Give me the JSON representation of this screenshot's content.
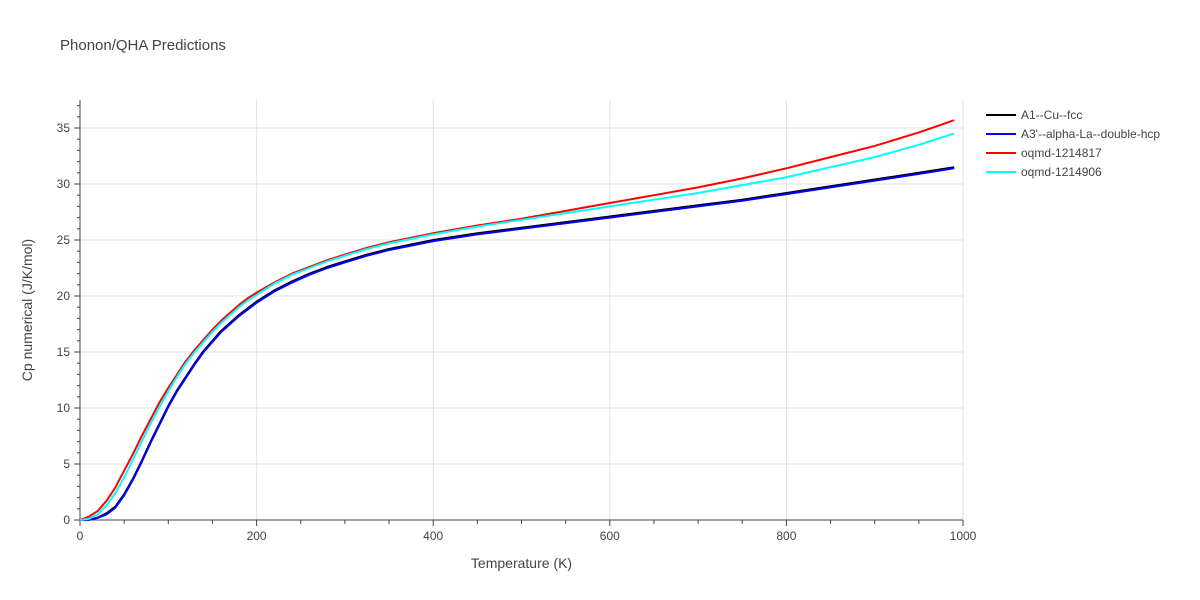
{
  "chart_data": {
    "type": "line",
    "title": "Phonon/QHA Predictions",
    "xlabel": "Temperature (K)",
    "ylabel": "Cp numerical (J/K/mol)",
    "xlim": [
      0,
      1000
    ],
    "ylim": [
      0,
      37.5
    ],
    "xticks": [
      0,
      200,
      400,
      600,
      800,
      1000
    ],
    "yticks": [
      0,
      5,
      10,
      15,
      20,
      25,
      30,
      35
    ],
    "grid": true,
    "legend_position": "top-right",
    "series": [
      {
        "name": "A1--Cu--fcc",
        "color": "#000000",
        "x": [
          0,
          10,
          20,
          30,
          40,
          50,
          60,
          70,
          80,
          90,
          100,
          110,
          120,
          130,
          140,
          150,
          160,
          170,
          180,
          190,
          200,
          220,
          240,
          260,
          280,
          300,
          325,
          350,
          375,
          400,
          450,
          500,
          550,
          600,
          650,
          700,
          750,
          800,
          850,
          900,
          950,
          990
        ],
        "y": [
          0,
          0.02,
          0.2,
          0.6,
          1.2,
          2.3,
          3.7,
          5.3,
          7.0,
          8.6,
          10.2,
          11.6,
          12.8,
          14.0,
          15.1,
          16.0,
          16.9,
          17.6,
          18.3,
          18.9,
          19.5,
          20.5,
          21.3,
          22.0,
          22.6,
          23.1,
          23.7,
          24.2,
          24.6,
          25.0,
          25.6,
          26.1,
          26.6,
          27.1,
          27.6,
          28.1,
          28.6,
          29.2,
          29.8,
          30.4,
          31.0,
          31.5
        ]
      },
      {
        "name": "A3'--alpha-La--double-hcp",
        "color": "#0000ff",
        "x": [
          0,
          10,
          20,
          30,
          40,
          50,
          60,
          70,
          80,
          90,
          100,
          110,
          120,
          130,
          140,
          150,
          160,
          170,
          180,
          190,
          200,
          220,
          240,
          260,
          280,
          300,
          325,
          350,
          375,
          400,
          450,
          500,
          550,
          600,
          650,
          700,
          750,
          800,
          850,
          900,
          950,
          990
        ],
        "y": [
          0,
          0.02,
          0.2,
          0.5,
          1.1,
          2.2,
          3.6,
          5.2,
          6.9,
          8.5,
          10.1,
          11.5,
          12.7,
          13.9,
          15.0,
          15.9,
          16.8,
          17.5,
          18.2,
          18.8,
          19.4,
          20.4,
          21.2,
          21.9,
          22.5,
          23.0,
          23.6,
          24.1,
          24.5,
          24.9,
          25.5,
          26.0,
          26.5,
          27.0,
          27.5,
          28.0,
          28.5,
          29.1,
          29.7,
          30.3,
          30.9,
          31.4
        ]
      },
      {
        "name": "oqmd-1214817",
        "color": "#ff0000",
        "x": [
          0,
          10,
          20,
          30,
          40,
          50,
          60,
          70,
          80,
          90,
          100,
          110,
          120,
          130,
          140,
          150,
          160,
          170,
          180,
          190,
          200,
          220,
          240,
          260,
          280,
          300,
          325,
          350,
          375,
          400,
          450,
          500,
          550,
          600,
          650,
          700,
          750,
          800,
          850,
          900,
          950,
          990
        ],
        "y": [
          0,
          0.3,
          0.8,
          1.7,
          2.9,
          4.4,
          5.9,
          7.5,
          9.0,
          10.5,
          11.8,
          13.0,
          14.2,
          15.2,
          16.1,
          17.0,
          17.8,
          18.5,
          19.2,
          19.8,
          20.3,
          21.2,
          22.0,
          22.6,
          23.2,
          23.7,
          24.3,
          24.8,
          25.2,
          25.6,
          26.3,
          26.9,
          27.6,
          28.3,
          29.0,
          29.7,
          30.5,
          31.4,
          32.4,
          33.4,
          34.6,
          35.7
        ]
      },
      {
        "name": "oqmd-1214906",
        "color": "#00ffff",
        "x": [
          0,
          10,
          20,
          30,
          40,
          50,
          60,
          70,
          80,
          90,
          100,
          110,
          120,
          130,
          140,
          150,
          160,
          170,
          180,
          190,
          200,
          220,
          240,
          260,
          280,
          300,
          325,
          350,
          375,
          400,
          450,
          500,
          550,
          600,
          650,
          700,
          750,
          800,
          850,
          900,
          950,
          990
        ],
        "y": [
          0,
          0.1,
          0.5,
          1.3,
          2.4,
          3.8,
          5.4,
          7.0,
          8.6,
          10.1,
          11.5,
          12.8,
          14.0,
          15.0,
          15.9,
          16.8,
          17.6,
          18.3,
          19.0,
          19.6,
          20.1,
          21.1,
          21.9,
          22.5,
          23.1,
          23.6,
          24.2,
          24.7,
          25.1,
          25.5,
          26.2,
          26.8,
          27.4,
          28.0,
          28.6,
          29.2,
          29.9,
          30.6,
          31.5,
          32.4,
          33.5,
          34.5
        ]
      }
    ]
  }
}
